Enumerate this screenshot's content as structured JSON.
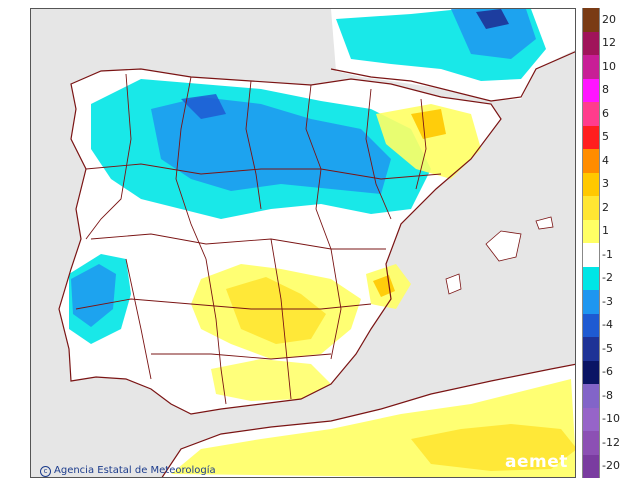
{
  "credit": "Agencia Estatal de Meteorología",
  "logo": "aemet",
  "legend": {
    "items": [
      {
        "label": "20",
        "color": "#7a3b14"
      },
      {
        "label": "12",
        "color": "#a0145a"
      },
      {
        "label": "10",
        "color": "#c81e96"
      },
      {
        "label": "8",
        "color": "#ff14ff"
      },
      {
        "label": "6",
        "color": "#ff3c8c"
      },
      {
        "label": "5",
        "color": "#ff1e1e"
      },
      {
        "label": "4",
        "color": "#ff8c00"
      },
      {
        "label": "3",
        "color": "#ffc800"
      },
      {
        "label": "2",
        "color": "#ffe632"
      },
      {
        "label": "1",
        "color": "#ffff64"
      },
      {
        "label": "-1",
        "color": "#ffffff"
      },
      {
        "label": "-2",
        "color": "#00e6e6"
      },
      {
        "label": "-3",
        "color": "#1e96f0"
      },
      {
        "label": "-4",
        "color": "#1e5ad2"
      },
      {
        "label": "-5",
        "color": "#1e3296"
      },
      {
        "label": "-6",
        "color": "#0a1464"
      },
      {
        "label": "-8",
        "color": "#8264c8"
      },
      {
        "label": "-10",
        "color": "#9664c8"
      },
      {
        "label": "-12",
        "color": "#8c50b4"
      },
      {
        "label": "-20",
        "color": "#7a3ca0"
      }
    ]
  },
  "colors": {
    "sea": "#e6e6e6",
    "land": "#ffffff",
    "border": "#7a1414"
  }
}
